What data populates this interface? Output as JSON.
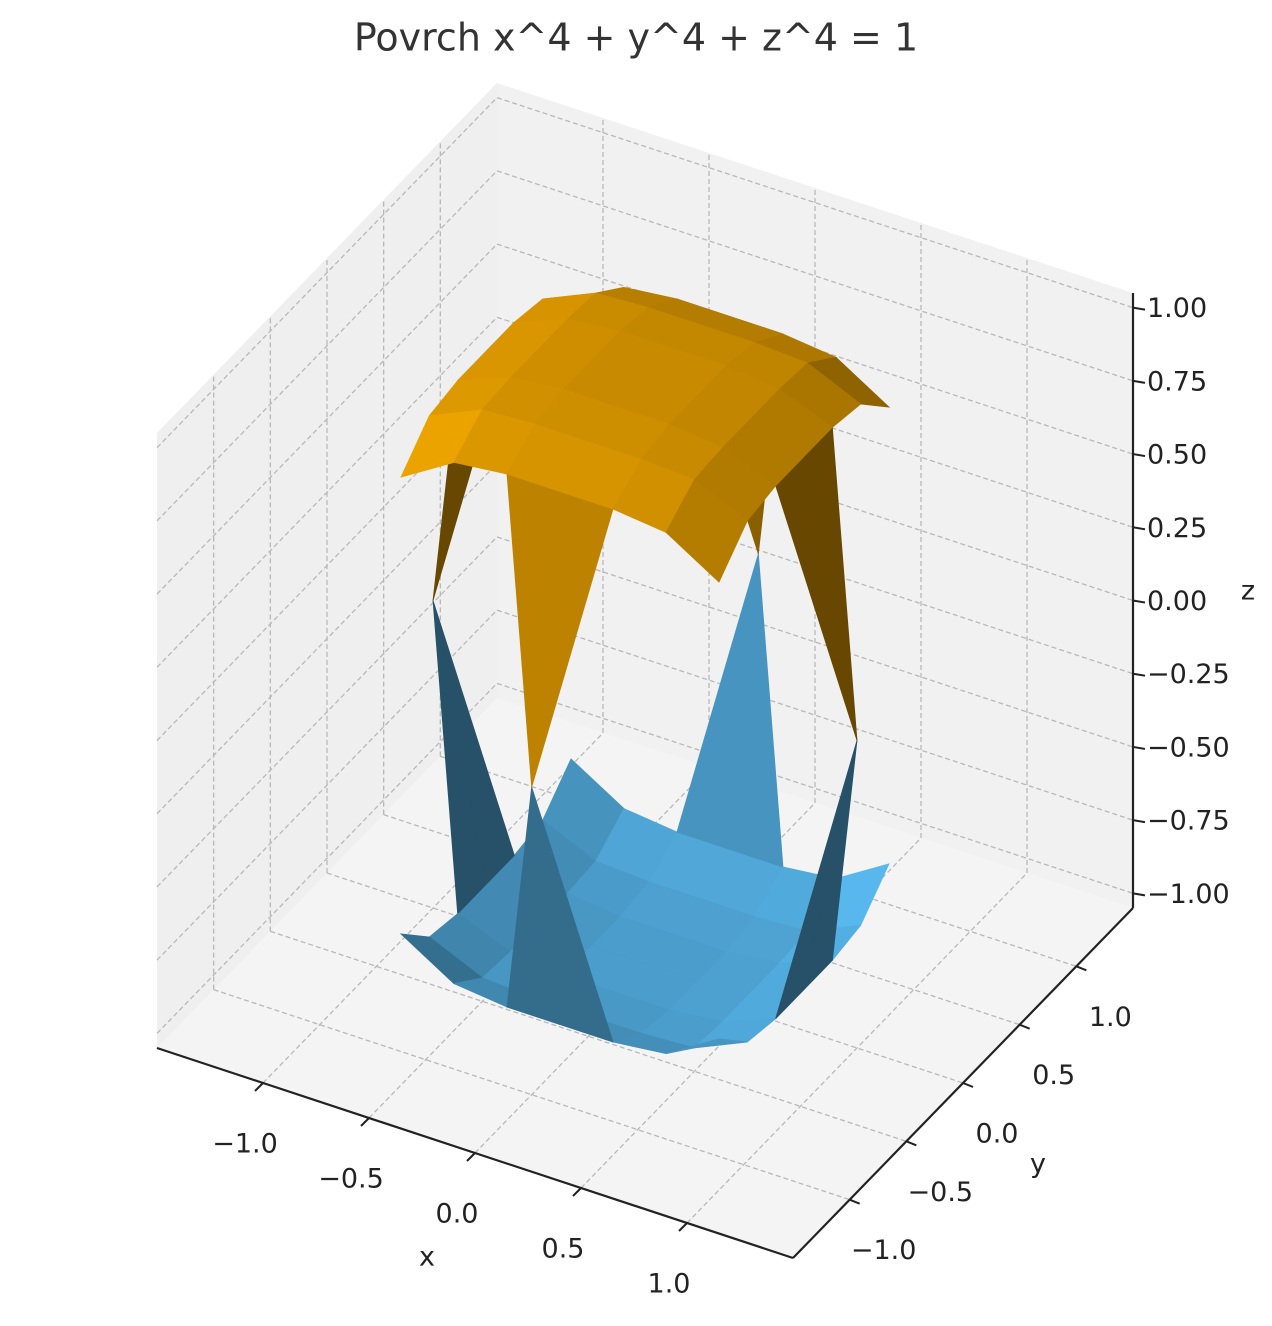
{
  "chart_data": {
    "type": "surface",
    "title": "Povrch x^4 + y^4 + z^4 = 1",
    "xlabel": "x",
    "ylabel": "y",
    "zlabel": "z",
    "x": [
      -1,
      -0.75,
      -0.5,
      -0.25,
      0,
      0.25,
      0.5,
      0.75,
      1
    ],
    "y": [
      -1,
      -0.75,
      -0.5,
      -0.25,
      0,
      0.25,
      0.5,
      0.75,
      1
    ],
    "series": [
      {
        "color": "#e69f00",
        "z": [
          [
            null,
            null,
            null,
            null,
            0,
            null,
            null,
            null,
            null
          ],
          [
            null,
            0.78,
            0.89,
            0.91,
            0.91,
            0.91,
            0.89,
            0.78,
            null
          ],
          [
            null,
            0.89,
            0.97,
            0.98,
            0.98,
            0.98,
            0.97,
            0.89,
            null
          ],
          [
            null,
            0.91,
            0.98,
            1.0,
            1.0,
            1.0,
            0.98,
            0.91,
            null
          ],
          [
            0,
            0.91,
            0.98,
            1.0,
            1,
            1.0,
            0.98,
            0.91,
            0
          ],
          [
            null,
            0.91,
            0.98,
            1.0,
            1.0,
            1.0,
            0.98,
            0.91,
            null
          ],
          [
            null,
            0.89,
            0.97,
            0.98,
            0.98,
            0.98,
            0.97,
            0.89,
            null
          ],
          [
            null,
            0.78,
            0.89,
            0.91,
            0.91,
            0.91,
            0.89,
            0.78,
            null
          ],
          [
            null,
            null,
            null,
            null,
            0,
            null,
            null,
            null,
            null
          ]
        ]
      },
      {
        "color": "#56b4e9",
        "z": [
          [
            null,
            null,
            null,
            null,
            0,
            null,
            null,
            null,
            null
          ],
          [
            null,
            -0.78,
            -0.89,
            -0.91,
            -0.91,
            -0.91,
            -0.89,
            -0.78,
            null
          ],
          [
            null,
            -0.89,
            -0.97,
            -0.98,
            -0.98,
            -0.98,
            -0.97,
            -0.89,
            null
          ],
          [
            null,
            -0.91,
            -0.98,
            -1.0,
            -1.0,
            -1.0,
            -0.98,
            -0.91,
            null
          ],
          [
            0,
            -0.91,
            -0.98,
            -1.0,
            -1,
            -1.0,
            -0.98,
            -0.91,
            0
          ],
          [
            null,
            -0.91,
            -0.98,
            -1.0,
            -1.0,
            -1.0,
            -0.98,
            -0.91,
            null
          ],
          [
            null,
            -0.89,
            -0.97,
            -0.98,
            -0.98,
            -0.98,
            -0.97,
            -0.89,
            null
          ],
          [
            null,
            -0.78,
            -0.89,
            -0.91,
            -0.91,
            -0.91,
            -0.89,
            -0.78,
            null
          ],
          [
            null,
            null,
            null,
            null,
            0,
            null,
            null,
            null,
            null
          ]
        ]
      }
    ],
    "xlim": [
      -1.5,
      1.5
    ],
    "ylim": [
      -1.5,
      1.5
    ],
    "zlim": [
      -1.05,
      1.05
    ],
    "xticks": [
      {
        "value": -1,
        "label": "−1.0"
      },
      {
        "value": -0.5,
        "label": "−0.5"
      },
      {
        "value": 0,
        "label": "0.0"
      },
      {
        "value": 0.5,
        "label": "0.5"
      },
      {
        "value": 1,
        "label": "1.0"
      }
    ],
    "yticks": [
      {
        "value": -1,
        "label": "−1.0"
      },
      {
        "value": -0.5,
        "label": "−0.5"
      },
      {
        "value": 0,
        "label": "0.0"
      },
      {
        "value": 0.5,
        "label": "0.5"
      },
      {
        "value": 1,
        "label": "1.0"
      }
    ],
    "zticks": [
      {
        "value": -1,
        "label": "−1.00"
      },
      {
        "value": -0.75,
        "label": "−0.75"
      },
      {
        "value": -0.5,
        "label": "−0.50"
      },
      {
        "value": -0.25,
        "label": "−0.25"
      },
      {
        "value": 0,
        "label": "0.00"
      },
      {
        "value": 0.25,
        "label": "0.25"
      },
      {
        "value": 0.5,
        "label": "0.50"
      },
      {
        "value": 0.75,
        "label": "0.75"
      },
      {
        "value": 1,
        "label": "1.00"
      }
    ],
    "grid": true
  }
}
